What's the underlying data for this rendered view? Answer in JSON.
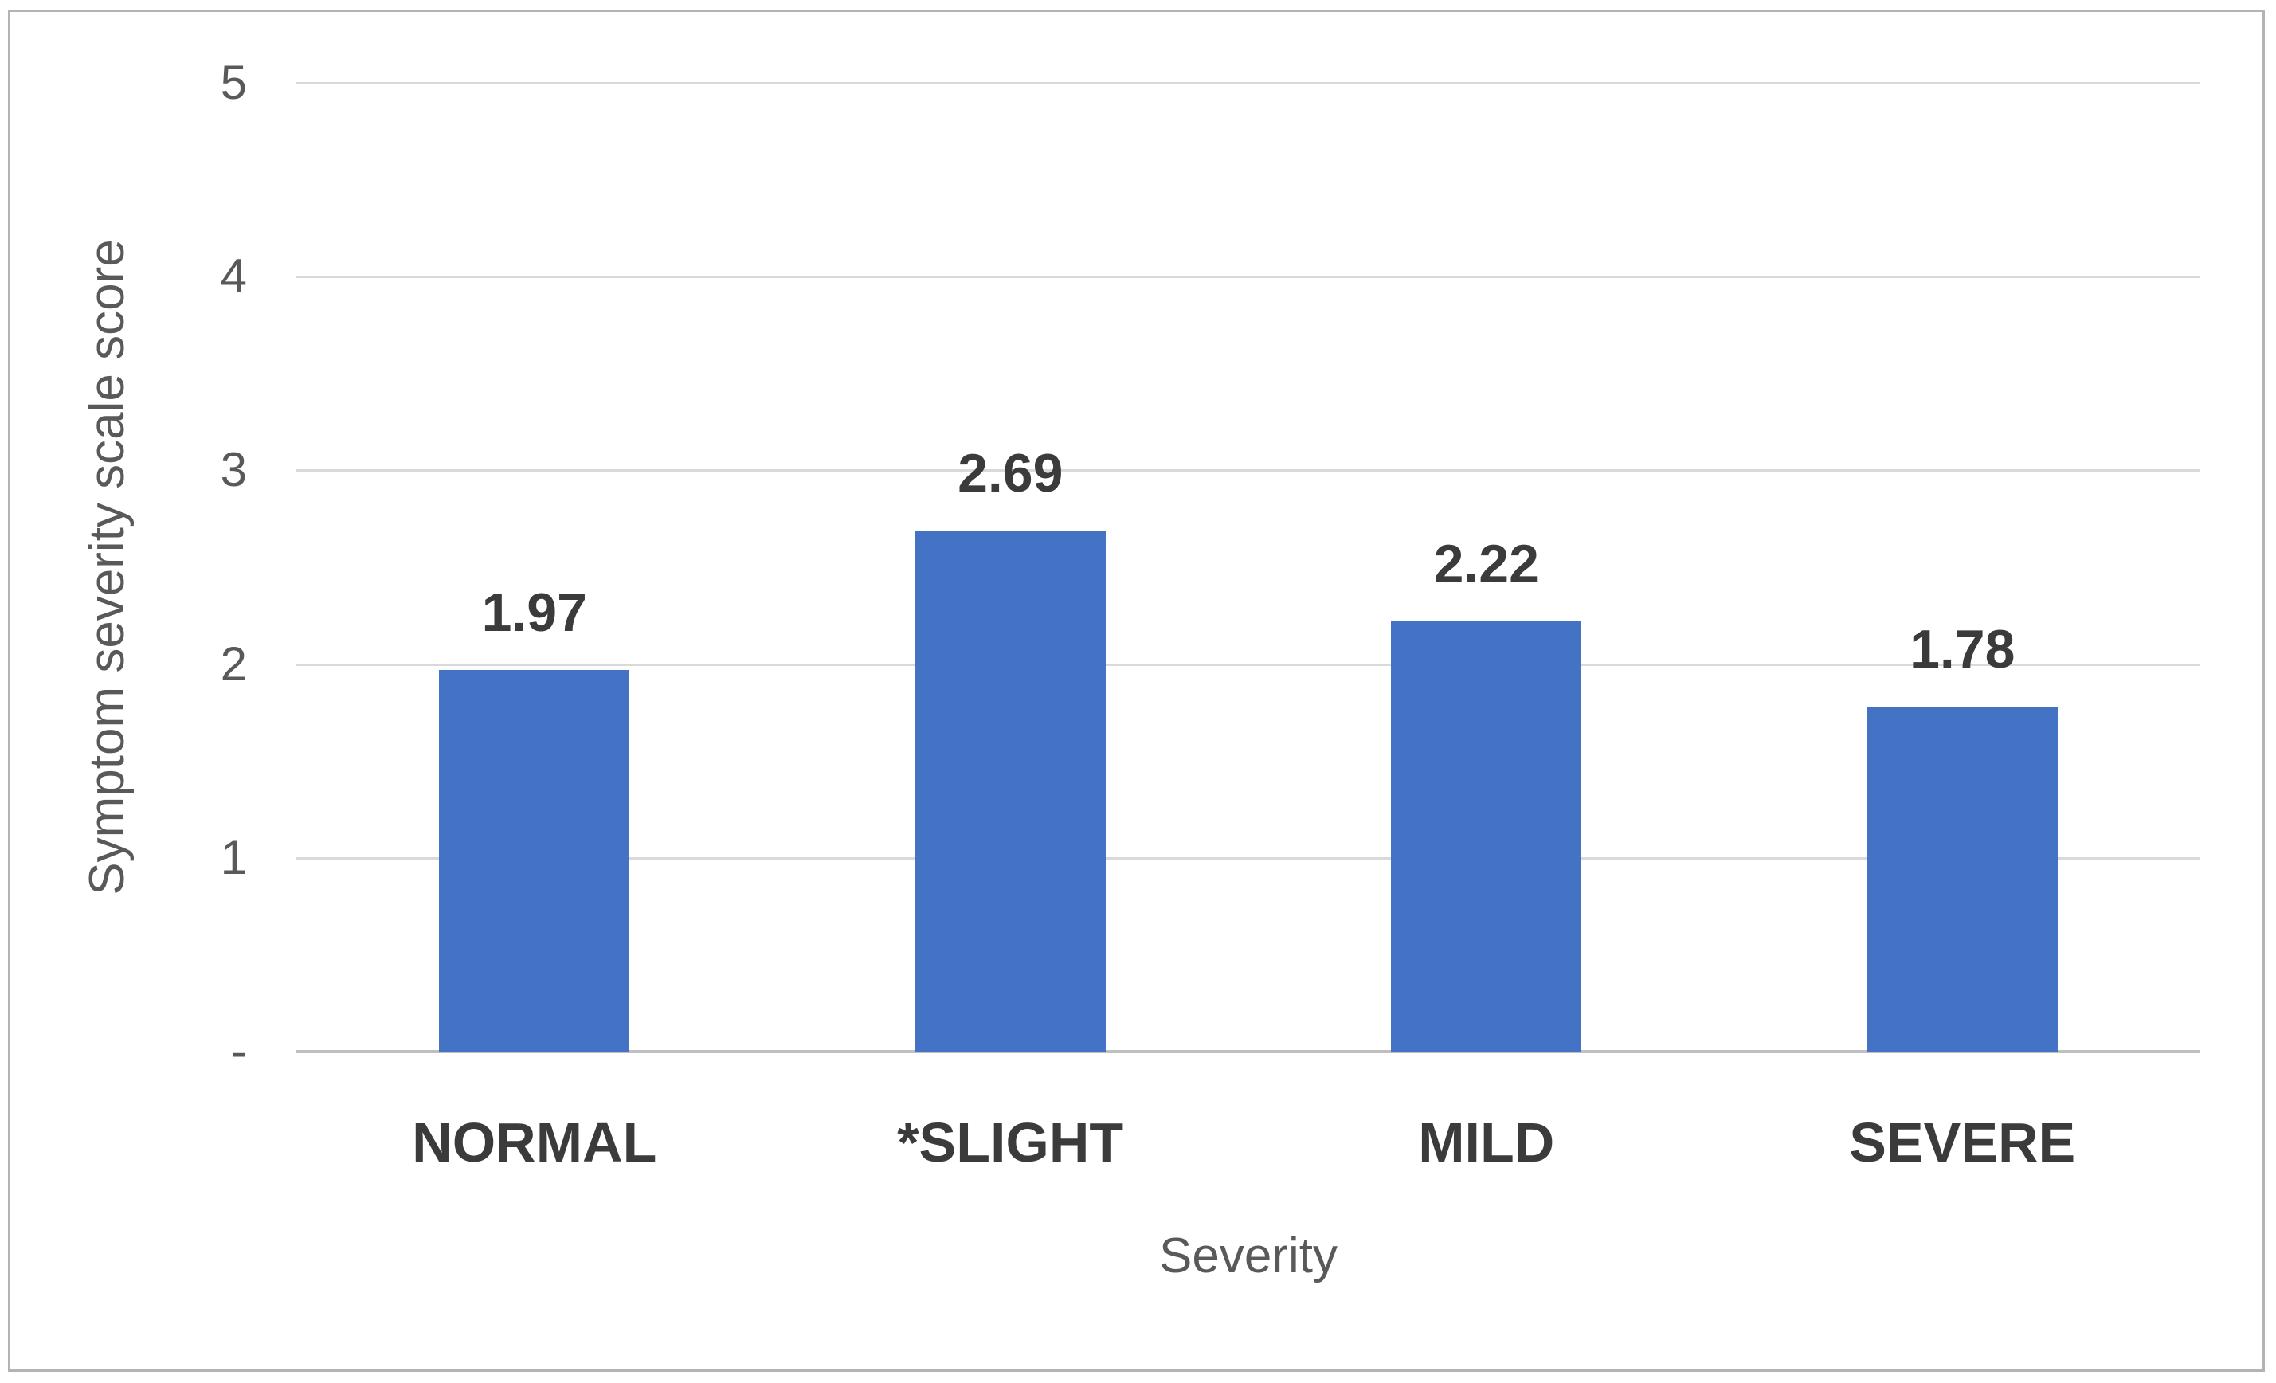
{
  "chart_data": {
    "type": "bar",
    "categories": [
      "NORMAL",
      "*SLIGHT",
      "MILD",
      "SEVERE"
    ],
    "values": [
      1.97,
      2.69,
      2.22,
      1.78
    ],
    "value_labels": [
      "1.97",
      "2.69",
      "2.22",
      "1.78"
    ],
    "title": "",
    "xlabel": "Severity",
    "ylabel": "Symptom severity scale score",
    "ylim": [
      0,
      5
    ],
    "yticks": [
      {
        "value": 5,
        "label": "5"
      },
      {
        "value": 4,
        "label": "4"
      },
      {
        "value": 3,
        "label": "3"
      },
      {
        "value": 2,
        "label": "2"
      },
      {
        "value": 1,
        "label": "1"
      },
      {
        "value": 0,
        "label": "-"
      }
    ],
    "grid": true,
    "legend": false,
    "legend_position": "none",
    "colors": {
      "bar": "#4472C4",
      "gridline": "#D9D9D9",
      "axis_line": "#BFBFBF",
      "tick_text": "#595959",
      "label_text": "#3B3B3B",
      "axis_title_text": "#595959",
      "page_border": "#B3B3B3",
      "background": "#FFFFFF"
    }
  }
}
